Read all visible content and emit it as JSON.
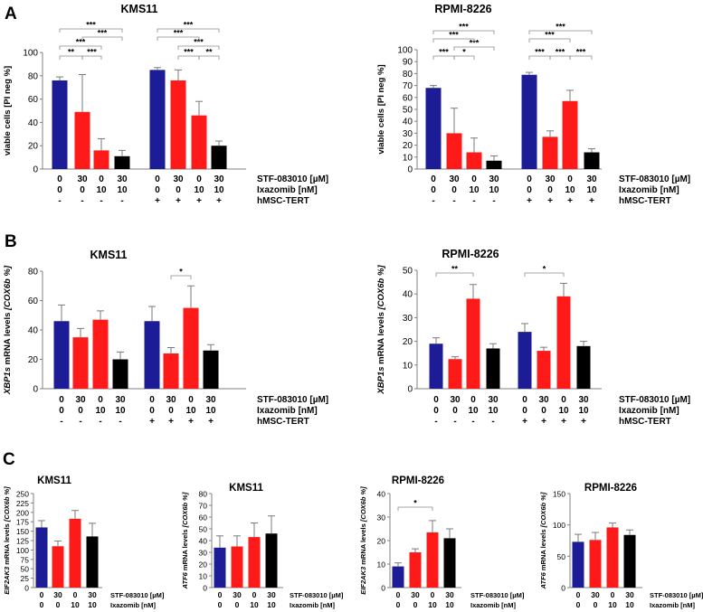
{
  "figure": {
    "panel_labels": [
      "A",
      "B",
      "C"
    ],
    "colors": {
      "blue": "#1c1c96",
      "red": "#ff1a1a",
      "black": "#000000"
    },
    "condition_labels": {
      "stf": "STF-083010 [µM]",
      "ixa": "Ixazomib [nM]",
      "hmsc": "hMSC-TERT",
      "stfC": "STF-083010 [µM]",
      "ixaC": "Ixazomib [nM]"
    },
    "y_labels": {
      "viable_plain": "viable cells ",
      "viable_bracket": "[PI neg %]",
      "xbp1_gene": "XBP1s",
      "xbp1_mid": " mRNA levels ",
      "cox_bracket": "[COX6b %]",
      "eif_gene": "EIF2AK3",
      "atf_gene": "ATF6",
      "mrna_mid": " mRNA levels "
    }
  },
  "chart_data": [
    {
      "id": "A1",
      "panel": "A",
      "type": "bar",
      "title": "KMS11",
      "ylabel": "viable cells [PI neg %]",
      "ylim": [
        0,
        100
      ],
      "yticks": [
        0,
        20,
        40,
        60,
        80,
        100
      ],
      "categories": [
        "0/0/-",
        "30/0/-",
        "0/10/-",
        "30/10/-",
        "0/0/+",
        "30/0/+",
        "0/10/+",
        "30/10/+"
      ],
      "stf": [
        "0",
        "30",
        "0",
        "30",
        "0",
        "30",
        "0",
        "30"
      ],
      "ixa": [
        "0",
        "0",
        "10",
        "10",
        "0",
        "0",
        "10",
        "10"
      ],
      "hmsc": [
        "-",
        "-",
        "-",
        "-",
        "+",
        "+",
        "+",
        "+"
      ],
      "colors": [
        "blue",
        "red",
        "red",
        "black",
        "blue",
        "red",
        "red",
        "black"
      ],
      "values": [
        76,
        49,
        16,
        11,
        85,
        76,
        46,
        20
      ],
      "errors": [
        3,
        32,
        10,
        5,
        2,
        9,
        12,
        4
      ],
      "significance": [
        {
          "from": 0,
          "to": 1,
          "label": "**"
        },
        {
          "from": 1,
          "to": 2,
          "label": "***"
        },
        {
          "from": 0,
          "to": 2,
          "label": "***"
        },
        {
          "from": 1,
          "to": 3,
          "label": "***"
        },
        {
          "from": 0,
          "to": 3,
          "label": "***"
        },
        {
          "from": 5,
          "to": 6,
          "label": "***"
        },
        {
          "from": 6,
          "to": 7,
          "label": "**"
        },
        {
          "from": 5,
          "to": 7,
          "label": "***"
        },
        {
          "from": 4,
          "to": 6,
          "label": "***"
        },
        {
          "from": 4,
          "to": 7,
          "label": "***"
        }
      ]
    },
    {
      "id": "A2",
      "panel": "A",
      "type": "bar",
      "title": "RPMI-8226",
      "ylabel": "viable cells [PI neg %]",
      "ylim": [
        0,
        100
      ],
      "yticks": [
        0,
        10,
        20,
        30,
        40,
        50,
        60,
        70,
        80,
        90,
        100
      ],
      "categories": [
        "0/0/-",
        "30/0/-",
        "0/10/-",
        "30/10/-",
        "0/0/+",
        "30/0/+",
        "0/10/+",
        "30/10/+"
      ],
      "stf": [
        "0",
        "30",
        "0",
        "30",
        "0",
        "30",
        "0",
        "30"
      ],
      "ixa": [
        "0",
        "0",
        "10",
        "10",
        "0",
        "0",
        "10",
        "10"
      ],
      "hmsc": [
        "-",
        "-",
        "-",
        "-",
        "+",
        "+",
        "+",
        "+"
      ],
      "colors": [
        "blue",
        "red",
        "red",
        "black",
        "blue",
        "red",
        "red",
        "black"
      ],
      "values": [
        68,
        30,
        14,
        7,
        79,
        27,
        57,
        14
      ],
      "errors": [
        2,
        21,
        12,
        4,
        2,
        5,
        9,
        3
      ],
      "significance": [
        {
          "from": 0,
          "to": 1,
          "label": "***"
        },
        {
          "from": 1,
          "to": 2,
          "label": "*"
        },
        {
          "from": 1,
          "to": 3,
          "label": "***"
        },
        {
          "from": 0,
          "to": 2,
          "label": "***"
        },
        {
          "from": 0,
          "to": 3,
          "label": "***"
        },
        {
          "from": 4,
          "to": 5,
          "label": "***"
        },
        {
          "from": 5,
          "to": 6,
          "label": "***"
        },
        {
          "from": 6,
          "to": 7,
          "label": "***"
        },
        {
          "from": 4,
          "to": 6,
          "label": "***"
        },
        {
          "from": 4,
          "to": 7,
          "label": "***"
        }
      ]
    },
    {
      "id": "B1",
      "panel": "B",
      "type": "bar",
      "title": "KMS11",
      "ylabel": "XBP1s mRNA levels [COX6b %]",
      "ylim": [
        0,
        80
      ],
      "yticks": [
        0,
        20,
        40,
        60,
        80
      ],
      "categories": [
        "0/0/-",
        "30/0/-",
        "0/10/-",
        "30/10/-",
        "0/0/+",
        "30/0/+",
        "0/10/+",
        "30/10/+"
      ],
      "stf": [
        "0",
        "30",
        "0",
        "30",
        "0",
        "30",
        "0",
        "30"
      ],
      "ixa": [
        "0",
        "0",
        "10",
        "10",
        "0",
        "0",
        "10",
        "10"
      ],
      "hmsc": [
        "-",
        "-",
        "-",
        "-",
        "+",
        "+",
        "+",
        "+"
      ],
      "colors": [
        "blue",
        "red",
        "red",
        "black",
        "blue",
        "red",
        "red",
        "black"
      ],
      "values": [
        46,
        35,
        47,
        20,
        46,
        24,
        55,
        26
      ],
      "errors": [
        11,
        6,
        6,
        5,
        10,
        4,
        15,
        4
      ],
      "significance": [
        {
          "from": 5,
          "to": 6,
          "label": "*"
        }
      ]
    },
    {
      "id": "B2",
      "panel": "B",
      "type": "bar",
      "title": "RPMI-8226",
      "ylabel": "XBP1s mRNA levels [COX6b %]",
      "ylim": [
        0,
        50
      ],
      "yticks": [
        0,
        10,
        20,
        30,
        40,
        50
      ],
      "categories": [
        "0/0/-",
        "30/0/-",
        "0/10/-",
        "30/10/-",
        "0/0/+",
        "30/0/+",
        "0/10/+",
        "30/10/+"
      ],
      "stf": [
        "0",
        "30",
        "0",
        "30",
        "0",
        "30",
        "0",
        "30"
      ],
      "ixa": [
        "0",
        "0",
        "10",
        "10",
        "0",
        "0",
        "10",
        "10"
      ],
      "hmsc": [
        "-",
        "-",
        "-",
        "-",
        "+",
        "+",
        "+",
        "+"
      ],
      "colors": [
        "blue",
        "red",
        "red",
        "black",
        "blue",
        "red",
        "red",
        "black"
      ],
      "values": [
        19,
        12.5,
        38,
        17,
        24,
        16,
        39,
        18
      ],
      "errors": [
        2.5,
        1,
        6,
        2,
        3.5,
        1.5,
        5.5,
        2
      ],
      "significance": [
        {
          "from": 0,
          "to": 2,
          "label": "**"
        },
        {
          "from": 4,
          "to": 6,
          "label": "*"
        }
      ]
    },
    {
      "id": "C1",
      "panel": "C",
      "type": "bar",
      "title": "KMS11",
      "ylabel": "EIF2AK3 mRNA levels [COX6b %]",
      "ylim": [
        0,
        250
      ],
      "yticks": [
        0,
        25,
        50,
        75,
        100,
        125,
        150,
        175,
        200,
        225,
        250
      ],
      "categories": [
        "0/0",
        "30/0",
        "0/10",
        "30/10"
      ],
      "stf": [
        "0",
        "30",
        "0",
        "30"
      ],
      "ixa": [
        "0",
        "0",
        "10",
        "10"
      ],
      "colors": [
        "blue",
        "red",
        "red",
        "black"
      ],
      "values": [
        160,
        110,
        183,
        136
      ],
      "errors": [
        18,
        14,
        22,
        35
      ],
      "significance": []
    },
    {
      "id": "C2",
      "panel": "C",
      "type": "bar",
      "title": "KMS11",
      "ylabel": "ATF6 mRNA levels [COX6b %]",
      "ylim": [
        0,
        80
      ],
      "yticks": [
        0,
        10,
        20,
        30,
        40,
        50,
        60,
        70,
        80
      ],
      "categories": [
        "0/0",
        "30/0",
        "0/10",
        "30/10"
      ],
      "stf": [
        "0",
        "30",
        "0",
        "30"
      ],
      "ixa": [
        "0",
        "0",
        "10",
        "10"
      ],
      "colors": [
        "blue",
        "red",
        "red",
        "black"
      ],
      "values": [
        34,
        35,
        43,
        46
      ],
      "errors": [
        10,
        9,
        12,
        15
      ],
      "significance": []
    },
    {
      "id": "C3",
      "panel": "C",
      "type": "bar",
      "title": "RPMI-8226",
      "ylabel": "EIF2AK3 mRNA levels [COX6b %]",
      "ylim": [
        0,
        40
      ],
      "yticks": [
        0,
        10,
        20,
        30,
        40
      ],
      "categories": [
        "0/0",
        "30/0",
        "0/10",
        "30/10"
      ],
      "stf": [
        "0",
        "30",
        "0",
        "30"
      ],
      "ixa": [
        "0",
        "0",
        "10",
        "10"
      ],
      "colors": [
        "blue",
        "red",
        "red",
        "black"
      ],
      "values": [
        9,
        15,
        23.5,
        21
      ],
      "errors": [
        1.5,
        1.5,
        5,
        4
      ],
      "significance": [
        {
          "from": 0,
          "to": 2,
          "label": "*"
        }
      ]
    },
    {
      "id": "C4",
      "panel": "C",
      "type": "bar",
      "title": "RPMI-8226",
      "ylabel": "ATF6 mRNA levels [COX6b %]",
      "ylim": [
        0,
        150
      ],
      "yticks": [
        0,
        50,
        100,
        150
      ],
      "categories": [
        "0/0",
        "30/0",
        "0/10",
        "30/10"
      ],
      "stf": [
        "0",
        "30",
        "0",
        "30"
      ],
      "ixa": [
        "0",
        "0",
        "10",
        "10"
      ],
      "colors": [
        "blue",
        "red",
        "red",
        "black"
      ],
      "values": [
        73,
        76,
        96,
        84
      ],
      "errors": [
        12,
        12,
        7,
        8
      ],
      "significance": []
    }
  ]
}
